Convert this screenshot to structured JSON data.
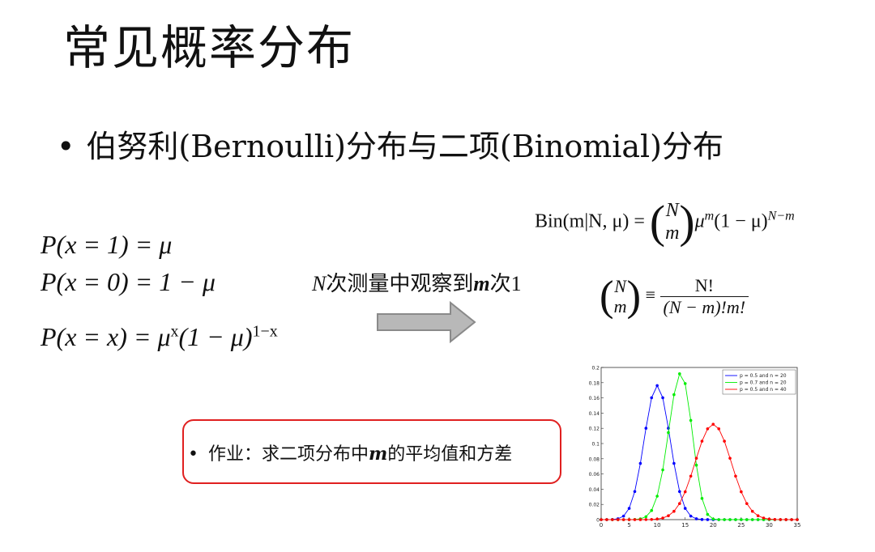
{
  "slide": {
    "title": "常见概率分布",
    "bullet": "•",
    "subtitle": "伯努利(Bernoulli)分布与二项(Binomial)分布"
  },
  "equations": {
    "p1_lhs": "P(x = 1) = ",
    "p1_rhs": "μ",
    "p0_lhs": "P(x = 0) = ",
    "p0_rhs": "1 − μ",
    "px_lhs": "P(x = ",
    "px_mid": "x",
    "px_rhs": ") = μ",
    "px_sup1": "x",
    "px_tail": "(1 − μ)",
    "px_sup2": "1−x",
    "bin_lhs": "Bin(m|N, μ) = ",
    "bin_n": "N",
    "bin_m": "m",
    "bin_mu": "μ",
    "bin_sup1": "m",
    "bin_tail": "(1 − μ)",
    "bin_sup2": "N−m",
    "binom_n": "N",
    "binom_m": "m",
    "binom_equiv": "≡",
    "binom_num": "N!",
    "binom_den": "(N − m)!m!"
  },
  "arrow": {
    "label_n": "N",
    "label_mid": "次测量中观察到",
    "label_m": "m",
    "label_end": "次1"
  },
  "homework": {
    "bullet": "•",
    "prefix": "作业：求二项分布中",
    "var": "m",
    "suffix": "的平均值和方差"
  },
  "chart_data": {
    "type": "line",
    "xlim": [
      0,
      35
    ],
    "ylim": [
      0,
      0.2
    ],
    "xticks": [
      "0",
      "5",
      "10",
      "15",
      "20",
      "25",
      "30",
      "35"
    ],
    "yticks": [
      "0",
      "0.02",
      "0.04",
      "0.06",
      "0.08",
      "0.1",
      "0.12",
      "0.14",
      "0.16",
      "0.18",
      "0.2"
    ],
    "legend_position": "top-right",
    "series": [
      {
        "name": "p = 0.5 and n = 20",
        "color": "#0000ff",
        "N": 20,
        "p": 0.5
      },
      {
        "name": "p = 0.7 and n = 20",
        "color": "#00ee00",
        "N": 20,
        "p": 0.7
      },
      {
        "name": "p = 0.5 and n = 40",
        "color": "#ff0000",
        "N": 40,
        "p": 0.5
      }
    ],
    "x_domain": [
      0,
      35
    ]
  }
}
